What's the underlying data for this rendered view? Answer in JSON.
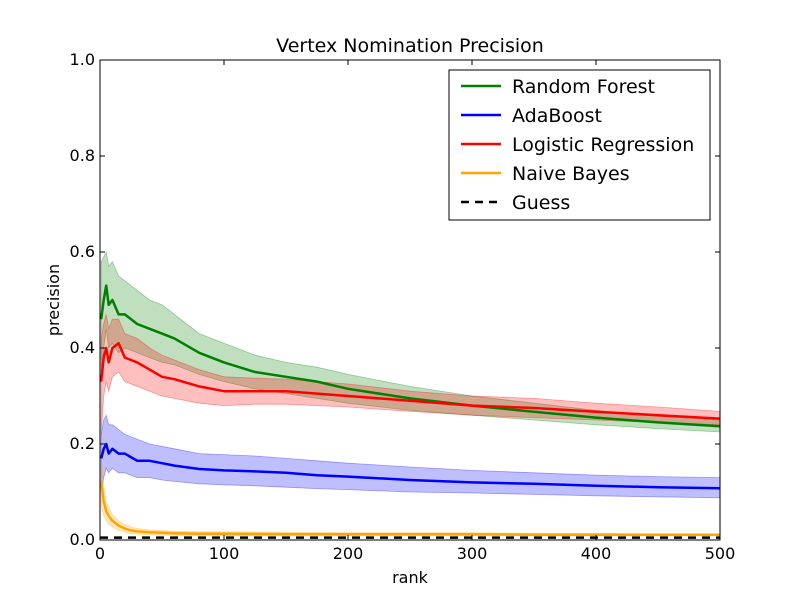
{
  "chart_data": {
    "type": "line",
    "title": "Vertex Nomination Precision",
    "xlabel": "rank",
    "ylabel": "precision",
    "xlim": [
      0,
      500
    ],
    "ylim": [
      0,
      1.0
    ],
    "x_ticks": [
      0,
      100,
      200,
      300,
      400,
      500
    ],
    "y_ticks": [
      0.0,
      0.2,
      0.4,
      0.6,
      0.8,
      1.0
    ],
    "x_tick_labels": [
      "0",
      "100",
      "200",
      "300",
      "400",
      "500"
    ],
    "y_tick_labels": [
      "0.0",
      "0.2",
      "0.4",
      "0.6",
      "0.8",
      "1.0"
    ],
    "grid": false,
    "legend_position": "top-right",
    "legend": [
      "Random Forest",
      "AdaBoost",
      "Logistic Regression",
      "Naive Bayes",
      "Guess"
    ],
    "series": [
      {
        "name": "Random Forest",
        "color": "#008000",
        "style": "solid",
        "x": [
          1,
          3,
          5,
          7,
          10,
          15,
          20,
          30,
          40,
          50,
          60,
          80,
          100,
          125,
          150,
          175,
          200,
          250,
          300,
          350,
          400,
          450,
          500
        ],
        "y": [
          0.46,
          0.5,
          0.53,
          0.49,
          0.5,
          0.47,
          0.47,
          0.45,
          0.44,
          0.43,
          0.42,
          0.39,
          0.37,
          0.35,
          0.34,
          0.33,
          0.315,
          0.295,
          0.28,
          0.267,
          0.255,
          0.245,
          0.237
        ],
        "lower": [
          0.33,
          0.4,
          0.44,
          0.4,
          0.41,
          0.39,
          0.4,
          0.39,
          0.38,
          0.37,
          0.365,
          0.345,
          0.33,
          0.315,
          0.305,
          0.295,
          0.285,
          0.27,
          0.26,
          0.25,
          0.24,
          0.232,
          0.225
        ],
        "upper": [
          0.58,
          0.59,
          0.6,
          0.57,
          0.58,
          0.55,
          0.54,
          0.52,
          0.5,
          0.49,
          0.47,
          0.43,
          0.41,
          0.385,
          0.37,
          0.36,
          0.345,
          0.32,
          0.3,
          0.285,
          0.27,
          0.258,
          0.25
        ]
      },
      {
        "name": "AdaBoost",
        "color": "#0000ff",
        "style": "solid",
        "x": [
          1,
          3,
          5,
          7,
          10,
          15,
          20,
          30,
          40,
          50,
          60,
          80,
          100,
          125,
          150,
          175,
          200,
          250,
          300,
          350,
          400,
          450,
          500
        ],
        "y": [
          0.17,
          0.19,
          0.2,
          0.18,
          0.19,
          0.18,
          0.18,
          0.165,
          0.165,
          0.16,
          0.155,
          0.148,
          0.145,
          0.143,
          0.14,
          0.135,
          0.132,
          0.125,
          0.12,
          0.117,
          0.113,
          0.11,
          0.108
        ],
        "lower": [
          0.1,
          0.13,
          0.15,
          0.14,
          0.15,
          0.14,
          0.14,
          0.13,
          0.13,
          0.125,
          0.122,
          0.117,
          0.115,
          0.113,
          0.11,
          0.107,
          0.105,
          0.1,
          0.098,
          0.095,
          0.092,
          0.09,
          0.088
        ],
        "upper": [
          0.22,
          0.25,
          0.26,
          0.24,
          0.24,
          0.23,
          0.22,
          0.21,
          0.2,
          0.195,
          0.19,
          0.18,
          0.178,
          0.175,
          0.17,
          0.165,
          0.16,
          0.152,
          0.145,
          0.14,
          0.135,
          0.132,
          0.13
        ]
      },
      {
        "name": "Logistic Regression",
        "color": "#ff0000",
        "style": "solid",
        "x": [
          1,
          3,
          5,
          7,
          10,
          15,
          20,
          30,
          40,
          50,
          60,
          80,
          100,
          125,
          150,
          175,
          200,
          250,
          300,
          350,
          400,
          450,
          500
        ],
        "y": [
          0.33,
          0.38,
          0.4,
          0.37,
          0.4,
          0.41,
          0.38,
          0.37,
          0.355,
          0.34,
          0.335,
          0.32,
          0.31,
          0.31,
          0.31,
          0.305,
          0.3,
          0.29,
          0.28,
          0.275,
          0.267,
          0.26,
          0.253
        ],
        "lower": [
          0.22,
          0.3,
          0.33,
          0.31,
          0.34,
          0.35,
          0.33,
          0.32,
          0.31,
          0.3,
          0.295,
          0.285,
          0.28,
          0.283,
          0.283,
          0.28,
          0.277,
          0.268,
          0.26,
          0.255,
          0.25,
          0.245,
          0.24
        ],
        "upper": [
          0.42,
          0.45,
          0.47,
          0.44,
          0.46,
          0.46,
          0.43,
          0.42,
          0.4,
          0.385,
          0.375,
          0.355,
          0.34,
          0.337,
          0.335,
          0.33,
          0.325,
          0.31,
          0.3,
          0.295,
          0.285,
          0.277,
          0.268
        ]
      },
      {
        "name": "Naive Bayes",
        "color": "#ffa500",
        "style": "solid",
        "x": [
          1,
          3,
          5,
          7,
          10,
          15,
          20,
          25,
          30,
          40,
          50,
          60,
          80,
          100,
          150,
          200,
          250,
          300,
          350,
          400,
          450,
          500
        ],
        "y": [
          0.12,
          0.08,
          0.06,
          0.05,
          0.04,
          0.03,
          0.024,
          0.02,
          0.018,
          0.016,
          0.015,
          0.014,
          0.013,
          0.013,
          0.012,
          0.012,
          0.012,
          0.012,
          0.011,
          0.011,
          0.011,
          0.011
        ],
        "lower": [
          0.07,
          0.05,
          0.04,
          0.033,
          0.027,
          0.02,
          0.016,
          0.013,
          0.012,
          0.011,
          0.01,
          0.01,
          0.009,
          0.009,
          0.009,
          0.009,
          0.009,
          0.009,
          0.009,
          0.009,
          0.009,
          0.009
        ],
        "upper": [
          0.17,
          0.11,
          0.08,
          0.067,
          0.053,
          0.04,
          0.032,
          0.027,
          0.024,
          0.021,
          0.02,
          0.018,
          0.017,
          0.017,
          0.016,
          0.015,
          0.015,
          0.015,
          0.014,
          0.014,
          0.013,
          0.013
        ]
      },
      {
        "name": "Guess",
        "color": "#000000",
        "style": "dashed",
        "x": [
          0,
          500
        ],
        "y": [
          0.005,
          0.005
        ]
      }
    ]
  }
}
